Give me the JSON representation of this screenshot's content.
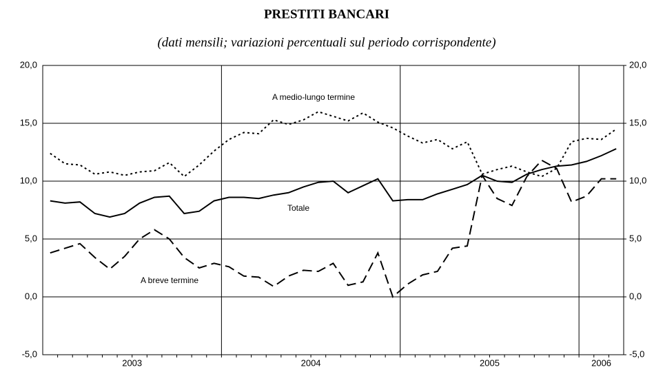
{
  "chart_data": {
    "type": "line",
    "title": "PRESTITI BANCARI",
    "subtitle": "(dati mensili; variazioni percentuali sul periodo corrispondente)",
    "categories": [
      "2003",
      null,
      null,
      null,
      null,
      null,
      null,
      null,
      null,
      null,
      null,
      null,
      "2004",
      null,
      null,
      null,
      null,
      null,
      null,
      null,
      null,
      null,
      null,
      null,
      "2005",
      null,
      null,
      null,
      null,
      null,
      null,
      null,
      null,
      null,
      null,
      null,
      "2006",
      null,
      null
    ],
    "series": [
      {
        "name": "Totale",
        "color": "#000000",
        "dash": "solid",
        "values": [
          8.3,
          8.1,
          8.2,
          7.2,
          6.9,
          7.2,
          8.1,
          8.6,
          8.7,
          7.2,
          7.4,
          8.3,
          8.6,
          8.6,
          8.5,
          8.8,
          9.0,
          9.5,
          9.9,
          10.0,
          9.0,
          9.6,
          10.2,
          8.3,
          8.4,
          8.4,
          8.9,
          9.3,
          9.7,
          10.5,
          10.0,
          9.9,
          10.6,
          11.0,
          11.3,
          11.4,
          11.7,
          12.2,
          12.8
        ]
      },
      {
        "name": "A medio-lungo termine",
        "color": "#000000",
        "dash": "dotted",
        "values": [
          12.4,
          11.5,
          11.4,
          10.6,
          10.8,
          10.5,
          10.8,
          10.9,
          11.6,
          10.4,
          11.4,
          12.6,
          13.6,
          14.2,
          14.1,
          15.3,
          14.9,
          15.3,
          16.0,
          15.6,
          15.2,
          15.9,
          15.1,
          14.6,
          13.9,
          13.3,
          13.6,
          12.8,
          13.4,
          10.6,
          11.0,
          11.3,
          10.8,
          10.4,
          11.1,
          13.4,
          13.7,
          13.6,
          14.5
        ]
      },
      {
        "name": "A breve termine",
        "color": "#000000",
        "dash": "dashed",
        "values": [
          3.8,
          4.2,
          4.6,
          3.4,
          2.4,
          3.5,
          5.0,
          5.8,
          5.0,
          3.4,
          2.5,
          2.9,
          2.6,
          1.8,
          1.7,
          0.9,
          1.8,
          2.3,
          2.2,
          2.9,
          1.0,
          1.3,
          3.8,
          0.0,
          1.1,
          1.9,
          2.2,
          4.2,
          4.4,
          10.5,
          8.5,
          7.9,
          10.4,
          11.8,
          11.1,
          8.2,
          8.7,
          10.2,
          10.2
        ]
      }
    ],
    "ylim": [
      -5,
      20
    ],
    "yticks": [
      {
        "value": -5,
        "label": "-5,0"
      },
      {
        "value": 0,
        "label": "0,0"
      },
      {
        "value": 5,
        "label": "5,0"
      },
      {
        "value": 10,
        "label": "10,0"
      },
      {
        "value": 15,
        "label": "15,0"
      },
      {
        "value": 20,
        "label": "20,0"
      }
    ],
    "y2lim": [
      -5,
      20
    ],
    "y2ticks": [
      {
        "value": -5,
        "label": "-5,0"
      },
      {
        "value": 0,
        "label": "0,0"
      },
      {
        "value": 5,
        "label": "5,0"
      },
      {
        "value": 10,
        "label": "10,0"
      },
      {
        "value": 15,
        "label": "15,0"
      },
      {
        "value": 20,
        "label": "20,0"
      }
    ],
    "grid": true
  }
}
